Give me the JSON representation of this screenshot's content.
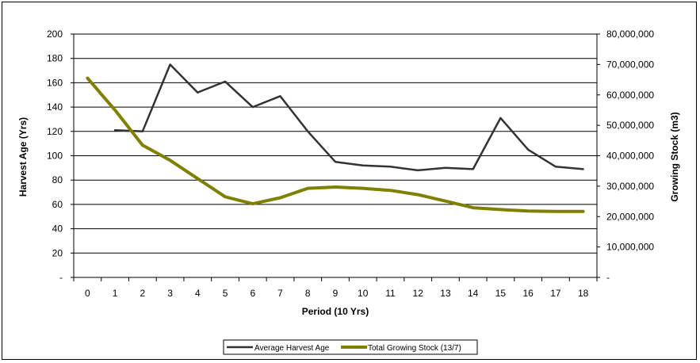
{
  "chart_data": {
    "type": "line",
    "x": [
      "0",
      "1",
      "2",
      "3",
      "4",
      "5",
      "6",
      "7",
      "8",
      "9",
      "10",
      "11",
      "12",
      "13",
      "14",
      "15",
      "16",
      "17",
      "18"
    ],
    "xlabel": "Period (10 Yrs)",
    "ylabel": "Harvest Age (Yrs)",
    "y2label": "Growing Stock (m3)",
    "ylim": [
      0,
      200
    ],
    "y2lim": [
      0,
      80000000
    ],
    "yticks": [
      "-",
      "20",
      "40",
      "60",
      "80",
      "100",
      "120",
      "140",
      "160",
      "180",
      "200"
    ],
    "y2ticks": [
      "-",
      "10,000,000",
      "20,000,000",
      "30,000,000",
      "40,000,000",
      "50,000,000",
      "60,000,000",
      "70,000,000",
      "80,000,000"
    ],
    "grid": "horizontal",
    "legend_position": "bottom",
    "series": [
      {
        "name": "Average Harvest Age",
        "axis": "left",
        "color": "#333333",
        "values": [
          null,
          121,
          120,
          175,
          152,
          161,
          140,
          149,
          120,
          95,
          92,
          91,
          88,
          90,
          89,
          131,
          105,
          91,
          89
        ]
      },
      {
        "name": "Total Growing Stock (13/7)",
        "axis": "right",
        "color": "#808000",
        "values": [
          65500000,
          55000000,
          43500000,
          38500000,
          32500000,
          26500000,
          24200000,
          26200000,
          29300000,
          29700000,
          29300000,
          28600000,
          27200000,
          25100000,
          22900000,
          22300000,
          21800000,
          21700000,
          21700000
        ]
      }
    ]
  }
}
